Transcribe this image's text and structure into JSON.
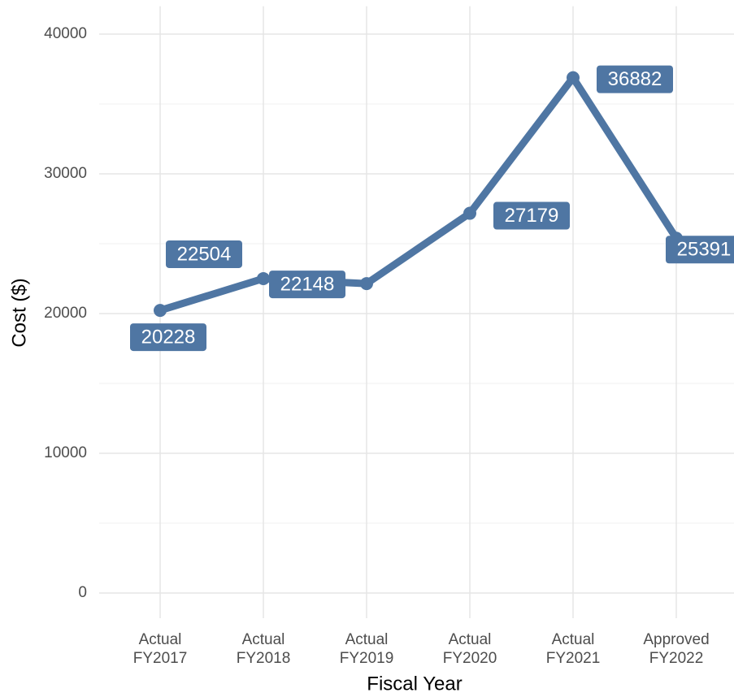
{
  "chart_data": {
    "type": "line",
    "x_label": "Fiscal Year",
    "y_label": "Cost ($)",
    "categories": [
      "Actual\nFY2017",
      "Actual\nFY2018",
      "Actual\nFY2019",
      "Actual\nFY2020",
      "Actual\nFY2021",
      "Approved\nFY2022"
    ],
    "series": [
      {
        "name": "Cost",
        "color": "#4f76a3",
        "values": [
          20228,
          22504,
          22148,
          27179,
          36882,
          25391
        ]
      }
    ],
    "ylim": [
      -1800,
      42000
    ],
    "yticks": [
      0,
      10000,
      20000,
      30000,
      40000
    ],
    "grid": true
  }
}
